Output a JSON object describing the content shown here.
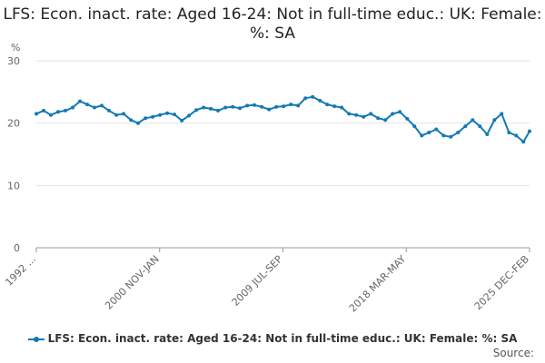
{
  "chart_data": {
    "type": "line",
    "title": "LFS: Econ. inact. rate: Aged 16-24: Not in full-time educ.: UK: Female: %: SA",
    "ylabel": "%",
    "ylim": [
      0,
      30
    ],
    "yticks": [
      0,
      10,
      20,
      30
    ],
    "xlim": [
      "1992-01",
      "2025-12"
    ],
    "xticks": [
      "1992 ...",
      "2000 NOV-JAN",
      "2009 JUL-SEP",
      "2018 MAR-MAY",
      "2025 DEC-FEB"
    ],
    "grid": true,
    "legend_position": "bottom",
    "source_label": "Source:",
    "color": "#1379b5",
    "series": [
      {
        "name": "LFS: Econ. inact. rate: Aged 16-24: Not in full-time educ.: UK: Female: %: SA",
        "x": [
          "1992-01",
          "1992-07",
          "1993-01",
          "1993-07",
          "1994-01",
          "1994-07",
          "1995-01",
          "1995-07",
          "1996-01",
          "1996-07",
          "1997-01",
          "1997-07",
          "1998-01",
          "1998-07",
          "1999-01",
          "1999-07",
          "2000-01",
          "2000-07",
          "2001-01",
          "2001-07",
          "2002-01",
          "2002-07",
          "2003-01",
          "2003-07",
          "2004-01",
          "2004-07",
          "2005-01",
          "2005-07",
          "2006-01",
          "2006-07",
          "2007-01",
          "2007-07",
          "2008-01",
          "2008-07",
          "2009-01",
          "2009-07",
          "2010-01",
          "2010-07",
          "2011-01",
          "2011-07",
          "2012-01",
          "2012-07",
          "2013-01",
          "2013-07",
          "2014-01",
          "2014-07",
          "2015-01",
          "2015-07",
          "2016-01",
          "2016-07",
          "2017-01",
          "2017-07",
          "2018-01",
          "2018-07",
          "2019-01",
          "2019-07",
          "2020-01",
          "2020-07",
          "2021-01",
          "2021-07",
          "2022-01",
          "2022-07",
          "2023-01",
          "2023-07",
          "2024-01",
          "2024-07",
          "2025-01",
          "2025-07",
          "2025-12"
        ],
        "values": [
          21.5,
          22.0,
          21.3,
          21.8,
          22.0,
          22.5,
          23.5,
          23.0,
          22.5,
          22.8,
          22.0,
          21.3,
          21.5,
          20.5,
          20.0,
          20.8,
          21.0,
          21.3,
          21.6,
          21.4,
          20.4,
          21.2,
          22.1,
          22.5,
          22.3,
          22.0,
          22.5,
          22.6,
          22.4,
          22.8,
          22.9,
          22.6,
          22.2,
          22.6,
          22.7,
          23.0,
          22.8,
          24.0,
          24.2,
          23.6,
          23.0,
          22.7,
          22.5,
          21.5,
          21.3,
          21.0,
          21.5,
          20.8,
          20.5,
          21.5,
          21.8,
          20.7,
          19.5,
          18.0,
          18.5,
          19.0,
          18.0,
          17.8,
          18.5,
          19.5,
          20.5,
          19.5,
          18.2,
          20.5,
          21.5,
          18.5,
          18.0,
          17.0,
          18.7
        ]
      }
    ]
  }
}
